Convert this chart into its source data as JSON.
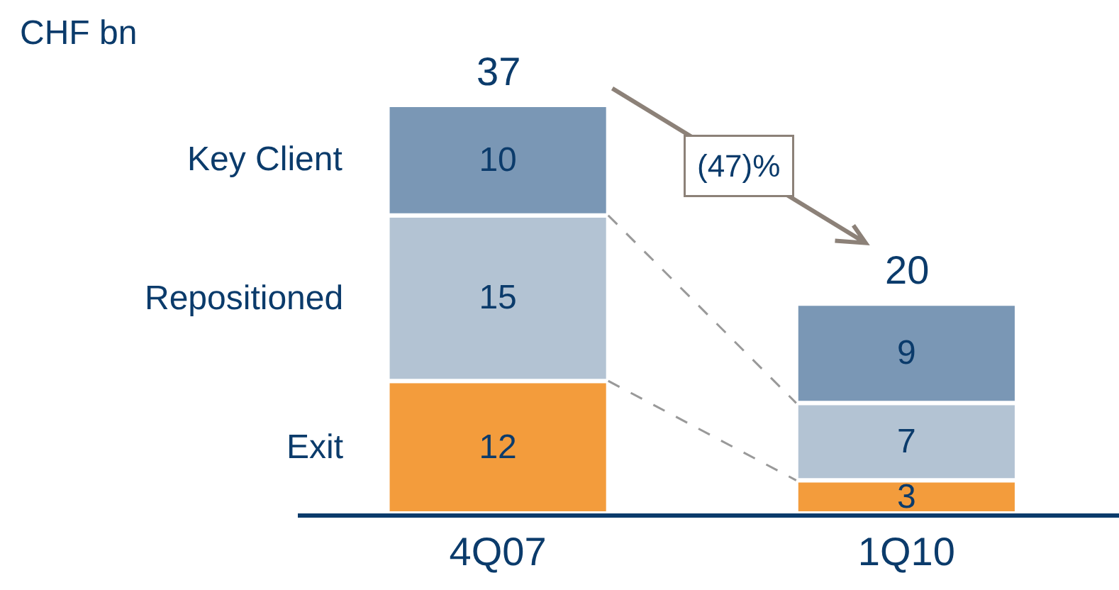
{
  "chart_data": {
    "type": "bar",
    "stacked": true,
    "title": "CHF bn",
    "categories": [
      "4Q07",
      "1Q10"
    ],
    "series": [
      {
        "name": "Exit",
        "color": "#f39c3c",
        "values": [
          12,
          3
        ]
      },
      {
        "name": "Repositioned",
        "color": "#b3c3d3",
        "values": [
          15,
          7
        ]
      },
      {
        "name": "Key Client",
        "color": "#7a97b5",
        "values": [
          10,
          9
        ]
      }
    ],
    "data_labels": true,
    "totals": [
      "37",
      "20"
    ],
    "annotations": [
      "(47)%"
    ],
    "legend": false
  }
}
